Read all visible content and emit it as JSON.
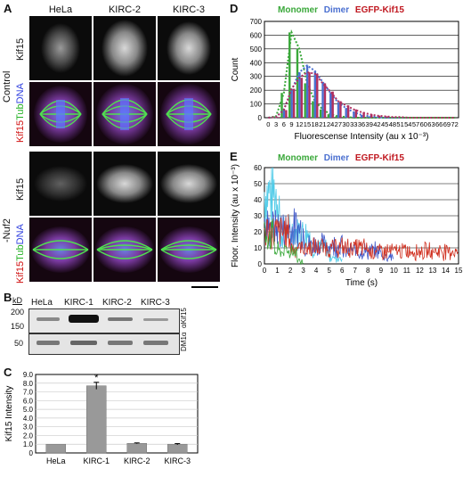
{
  "panels": {
    "A": {
      "label": "A",
      "columns": [
        "HeLa",
        "KIRC-2",
        "KIRC-3"
      ],
      "row_groups": [
        {
          "name": "Control",
          "rows": [
            "Kif15",
            "merge"
          ]
        },
        {
          "name": "-Nuf2",
          "rows": [
            "Kif15",
            "merge"
          ]
        }
      ],
      "row_labels": {
        "kif15": "Kif15",
        "merge_a": "Kif15",
        "merge_b": "Tub",
        "merge_c": "DNA"
      }
    },
    "B": {
      "label": "B",
      "unit": "kD",
      "lanes": [
        "HeLa",
        "KIRC-1",
        "KIRC-2",
        "KIRC-3"
      ],
      "markers": [
        "200",
        "150",
        "50"
      ],
      "blots": [
        "αKif15",
        "DM1α"
      ]
    },
    "C": {
      "label": "C",
      "star": "*"
    },
    "D": {
      "label": "D",
      "legend": [
        "Monomer",
        "Dimer",
        "EGFP-Kif15"
      ]
    },
    "E": {
      "label": "E",
      "legend": [
        "Monomer",
        "Dimer",
        "EGFP-Kif15"
      ]
    }
  },
  "charts": {
    "C": {
      "type": "bar",
      "categories": [
        "HeLa",
        "KIRC-1",
        "KIRC-2",
        "KIRC-3"
      ],
      "values": [
        1.0,
        7.7,
        1.1,
        1.0
      ],
      "errors": [
        0.0,
        0.4,
        0.05,
        0.07
      ],
      "ylabel": "Kif15 Intensity",
      "ylim": [
        0,
        9
      ],
      "yticks": [
        "0",
        "1.0",
        "2.0",
        "3.0",
        "4.0",
        "5.0",
        "6.0",
        "7.0",
        "8.0",
        "9.0"
      ],
      "bar_color": "#999999"
    },
    "D": {
      "type": "bar",
      "xlabel": "Fluorescense Intensity (au x 10⁻³)",
      "ylabel": "Count",
      "ylim": [
        0,
        700
      ],
      "yticks": [
        "0",
        "100",
        "200",
        "300",
        "400",
        "500",
        "600",
        "700"
      ],
      "xticks": [
        "0",
        "3",
        "6",
        "9",
        "12",
        "15",
        "18",
        "21",
        "24",
        "27",
        "30",
        "33",
        "36",
        "39",
        "42",
        "45",
        "48",
        "51",
        "54",
        "57",
        "60",
        "63",
        "66",
        "69",
        "72"
      ],
      "series": [
        {
          "name": "Monomer",
          "color": "#3aa83a",
          "values": [
            0,
            10,
            180,
            620,
            500,
            250,
            120,
            60,
            25,
            10,
            5,
            0,
            0,
            0,
            0,
            0,
            0,
            0,
            0,
            0,
            0,
            0,
            0,
            0,
            0
          ]
        },
        {
          "name": "Dimer",
          "color": "#4a6fd0",
          "values": [
            0,
            5,
            60,
            200,
            330,
            380,
            340,
            260,
            180,
            110,
            70,
            40,
            20,
            10,
            5,
            0,
            0,
            0,
            0,
            0,
            0,
            0,
            0,
            0,
            0
          ]
        },
        {
          "name": "EGFP-Kif15",
          "color": "#b03060",
          "values": [
            0,
            5,
            55,
            210,
            290,
            330,
            320,
            250,
            190,
            120,
            90,
            60,
            40,
            25,
            15,
            10,
            5,
            5,
            0,
            0,
            0,
            0,
            0,
            0,
            0
          ]
        }
      ]
    },
    "E": {
      "type": "line",
      "xlabel": "Time (s)",
      "ylabel": "Floor. Intensity (au x 10⁻³)",
      "xlim": [
        0,
        15
      ],
      "ylim": [
        0,
        60
      ],
      "xticks": [
        "0",
        "1",
        "2",
        "3",
        "4",
        "5",
        "6",
        "7",
        "8",
        "9",
        "10",
        "11",
        "12",
        "13",
        "14",
        "15"
      ],
      "yticks": [
        "0",
        "10",
        "20",
        "30",
        "40",
        "50",
        "60"
      ],
      "series": [
        {
          "name": "Monomer",
          "color": "#3aa83a"
        },
        {
          "name": "Dimer",
          "color": "#3f57c8"
        },
        {
          "name": "EGFP-Kif15",
          "color": "#d03020"
        },
        {
          "name": "EGFP-Kif15 (cyan)",
          "color": "#4fcbe8"
        }
      ]
    }
  }
}
